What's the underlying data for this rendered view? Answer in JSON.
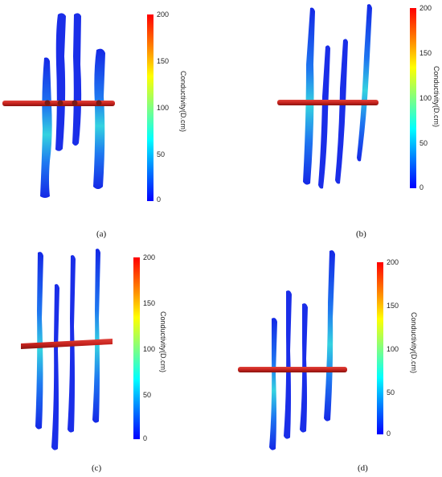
{
  "colorbar": {
    "title": "Conductivity(D.cm)",
    "ticks": [
      "200",
      "150",
      "100",
      "50",
      "0"
    ],
    "stops": [
      "#0000ff",
      "#0080ff",
      "#00ffff",
      "#80ff80",
      "#ffff00",
      "#ff8000",
      "#ff0000"
    ]
  },
  "colors": {
    "fracture": "#1428e6",
    "fracture_hot": "#34d2e0",
    "wellbore": "#c8231e"
  },
  "panels": [
    {
      "id": "a",
      "caption": "(a)"
    },
    {
      "id": "b",
      "caption": "(b)"
    },
    {
      "id": "c",
      "caption": "(c)"
    },
    {
      "id": "d",
      "caption": "(d)"
    }
  ]
}
